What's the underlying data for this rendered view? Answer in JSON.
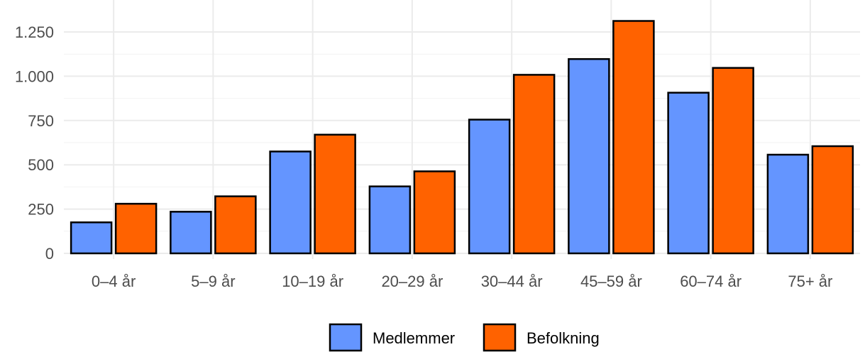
{
  "chart_data": {
    "type": "bar",
    "categories": [
      "0–4 år",
      "5–9 år",
      "10–19 år",
      "20–29 år",
      "30–44 år",
      "45–59 år",
      "60–74 år",
      "75+ år"
    ],
    "series": [
      {
        "name": "Medlemmer",
        "color": "#6495ff",
        "values": [
          175,
          235,
          575,
          378,
          755,
          1097,
          907,
          557
        ]
      },
      {
        "name": "Befolkning",
        "color": "#ff6200",
        "values": [
          280,
          322,
          670,
          463,
          1008,
          1312,
          1047,
          605
        ]
      }
    ],
    "yticks": [
      0,
      250,
      500,
      750,
      1000,
      1250
    ],
    "ytick_labels": [
      "0",
      "250",
      "500",
      "750",
      "1.000",
      "1.250"
    ],
    "ylim": [
      0,
      1360
    ],
    "title": "",
    "xlabel": "",
    "ylabel": "",
    "grid": true,
    "legend_position": "bottom"
  }
}
